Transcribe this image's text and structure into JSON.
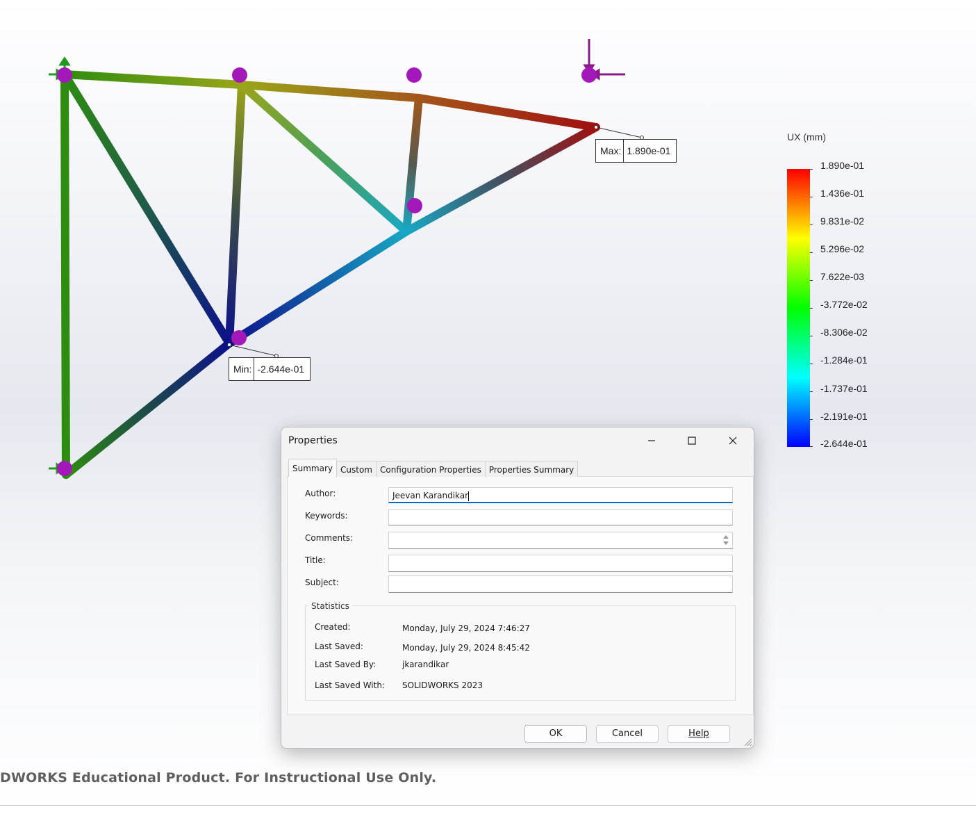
{
  "viewport": {
    "max_label": "Max:",
    "max_value": "1.890e-01",
    "min_label": "Min:",
    "min_value": "-2.644e-01"
  },
  "legend": {
    "title": "UX (mm)",
    "labels": [
      "1.890e-01",
      "1.436e-01",
      "9.831e-02",
      "5.296e-02",
      "7.622e-03",
      "-3.772e-02",
      "-8.306e-02",
      "-1.284e-01",
      "-1.737e-01",
      "-2.191e-01",
      "-2.644e-01"
    ],
    "colors": [
      "#ff0000",
      "#ffff00",
      "#00ff00",
      "#00ffff",
      "#0000ff"
    ]
  },
  "watermark": "DWORKS Educational Product. For Instructional Use Only.",
  "dialog": {
    "title": "Properties",
    "tabs": [
      "Summary",
      "Custom",
      "Configuration Properties",
      "Properties Summary"
    ],
    "active_tab": "Summary",
    "fields": {
      "author_label": "Author:",
      "author_value": "Jeevan Karandikar",
      "keywords_label": "Keywords:",
      "keywords_value": "",
      "comments_label": "Comments:",
      "comments_value": "",
      "title_label": "Title:",
      "title_value": "",
      "subject_label": "Subject:",
      "subject_value": ""
    },
    "statistics": {
      "legend": "Statistics",
      "created_label": "Created:",
      "created_value": "Monday, July 29, 2024 7:46:27",
      "last_saved_label": "Last Saved:",
      "last_saved_value": "Monday, July 29, 2024 8:45:42",
      "last_saved_by_label": "Last Saved By:",
      "last_saved_by_value": "jkarandikar",
      "last_saved_with_label": "Last Saved With:",
      "last_saved_with_value": "SOLIDWORKS 2023"
    },
    "buttons": {
      "ok": "OK",
      "cancel": "Cancel",
      "help": "Help"
    }
  }
}
